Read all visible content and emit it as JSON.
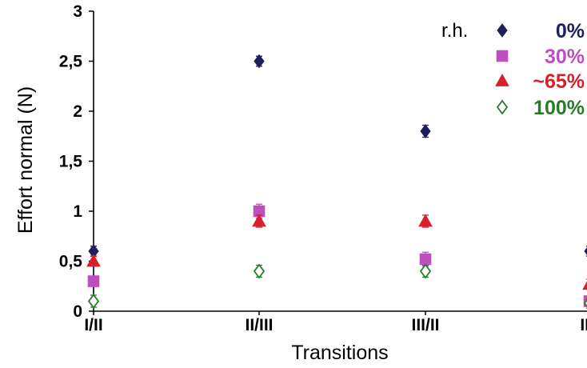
{
  "chart_data": {
    "type": "scatter",
    "title": "",
    "xlabel": "Transitions",
    "ylabel": "Effort normal (N)",
    "categories": [
      "I/II",
      "II/III",
      "III/II",
      "II/I"
    ],
    "ylim": [
      0,
      3
    ],
    "yticks": [
      0,
      0.5,
      1,
      1.5,
      2,
      2.5,
      3
    ],
    "ytick_labels": [
      "0",
      "0,5",
      "1",
      "1,5",
      "2",
      "2,5",
      "3"
    ],
    "grid": false,
    "legend_title": "r.h.",
    "legend_position": "top-right",
    "series": [
      {
        "name": "0%",
        "marker": "diamond-filled",
        "color": "#1f1f5e",
        "values": [
          0.6,
          2.5,
          1.8,
          0.6
        ],
        "errors": [
          0.05,
          0.05,
          0.06,
          0.05
        ]
      },
      {
        "name": "30%",
        "marker": "square",
        "color": "#bf4fbf",
        "values": [
          0.3,
          1.0,
          0.52,
          0.1
        ],
        "errors": [
          0.05,
          0.07,
          0.07,
          0.05
        ]
      },
      {
        "name": "~65%",
        "marker": "triangle",
        "color": "#d9202a",
        "values": [
          0.5,
          0.9,
          0.9,
          0.27
        ],
        "errors": [
          0.05,
          0.06,
          0.06,
          0.05
        ]
      },
      {
        "name": "100%",
        "marker": "diamond-open",
        "color": "#2a7a2a",
        "values": [
          0.1,
          0.4,
          0.4,
          0.08
        ],
        "errors": [
          0.06,
          0.06,
          0.06,
          0.05
        ]
      }
    ]
  }
}
